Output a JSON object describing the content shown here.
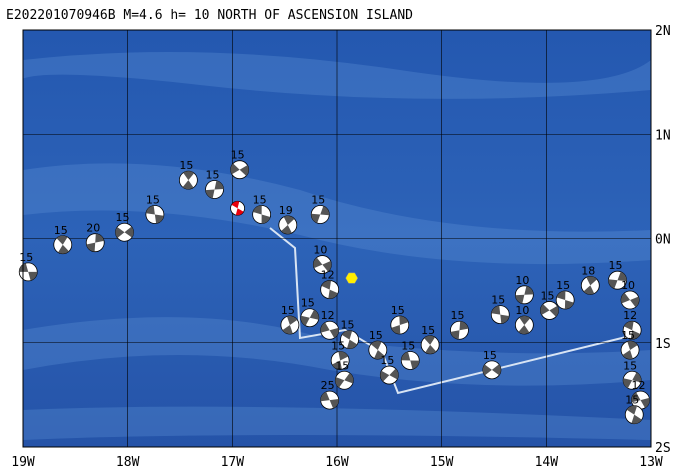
{
  "map": {
    "title": "E202201070946B M=4.6 h= 10 NORTH OF ASCENSION ISLAND",
    "lonlim": [
      -19,
      -13
    ],
    "latlim": [
      -2,
      2
    ],
    "lonticks": [
      {
        "value": -19,
        "label": "19W"
      },
      {
        "value": -18,
        "label": "18W"
      },
      {
        "value": -17,
        "label": "17W"
      },
      {
        "value": -16,
        "label": "16W"
      },
      {
        "value": -15,
        "label": "15W"
      },
      {
        "value": -14,
        "label": "14W"
      },
      {
        "value": -13,
        "label": "13W"
      }
    ],
    "latticks": [
      {
        "value": 2,
        "label": "2N"
      },
      {
        "value": 1,
        "label": "1N"
      },
      {
        "value": 0,
        "label": "0N"
      },
      {
        "value": -1,
        "label": "1S"
      },
      {
        "value": -2,
        "label": "2S"
      }
    ],
    "main_event": {
      "lon": -16.95,
      "lat": 0.29,
      "color": "#e8000b"
    },
    "station": {
      "lon": -15.86,
      "lat": -0.38,
      "color": "#ffee00"
    },
    "events": [
      {
        "lon": -18.95,
        "lat": -0.32,
        "depth": 15
      },
      {
        "lon": -18.62,
        "lat": -0.06,
        "depth": 15
      },
      {
        "lon": -18.31,
        "lat": -0.04,
        "depth": 20
      },
      {
        "lon": -18.03,
        "lat": 0.06,
        "depth": 15
      },
      {
        "lon": -17.74,
        "lat": 0.23,
        "depth": 15
      },
      {
        "lon": -17.42,
        "lat": 0.56,
        "depth": 15
      },
      {
        "lon": -17.17,
        "lat": 0.47,
        "depth": 15
      },
      {
        "lon": -16.93,
        "lat": 0.66,
        "depth": 15
      },
      {
        "lon": -16.72,
        "lat": 0.23,
        "depth": 15
      },
      {
        "lon": -16.47,
        "lat": 0.13,
        "depth": 19
      },
      {
        "lon": -16.16,
        "lat": 0.23,
        "depth": 15
      },
      {
        "lon": -16.14,
        "lat": -0.25,
        "depth": 10
      },
      {
        "lon": -16.07,
        "lat": -0.49,
        "depth": 12
      },
      {
        "lon": -16.45,
        "lat": -0.83,
        "depth": 15
      },
      {
        "lon": -16.26,
        "lat": -0.76,
        "depth": 15
      },
      {
        "lon": -16.07,
        "lat": -0.88,
        "depth": 12
      },
      {
        "lon": -15.88,
        "lat": -0.97,
        "depth": 15
      },
      {
        "lon": -15.97,
        "lat": -1.17,
        "depth": 15
      },
      {
        "lon": -15.93,
        "lat": -1.36,
        "depth": 15
      },
      {
        "lon": -16.07,
        "lat": -1.55,
        "depth": 25
      },
      {
        "lon": -15.61,
        "lat": -1.07,
        "depth": 15
      },
      {
        "lon": -15.4,
        "lat": -0.83,
        "depth": 15
      },
      {
        "lon": -15.5,
        "lat": -1.31,
        "depth": 15
      },
      {
        "lon": -15.3,
        "lat": -1.17,
        "depth": 15
      },
      {
        "lon": -15.11,
        "lat": -1.02,
        "depth": 15
      },
      {
        "lon": -14.83,
        "lat": -0.88,
        "depth": 15
      },
      {
        "lon": -14.52,
        "lat": -1.26,
        "depth": 15
      },
      {
        "lon": -14.44,
        "lat": -0.73,
        "depth": 15
      },
      {
        "lon": -14.21,
        "lat": -0.83,
        "depth": 10
      },
      {
        "lon": -14.21,
        "lat": -0.54,
        "depth": 10
      },
      {
        "lon": -13.97,
        "lat": -0.69,
        "depth": 15
      },
      {
        "lon": -13.82,
        "lat": -0.59,
        "depth": 15
      },
      {
        "lon": -13.58,
        "lat": -0.45,
        "depth": 18
      },
      {
        "lon": -13.32,
        "lat": -0.4,
        "depth": 15
      },
      {
        "lon": -13.2,
        "lat": -0.59,
        "depth": 10
      },
      {
        "lon": -13.18,
        "lat": -0.88,
        "depth": 12
      },
      {
        "lon": -13.2,
        "lat": -1.07,
        "depth": 15
      },
      {
        "lon": -13.18,
        "lat": -1.36,
        "depth": 15
      },
      {
        "lon": -13.1,
        "lat": -1.55,
        "depth": 12
      },
      {
        "lon": -13.16,
        "lat": -1.69,
        "depth": 15
      }
    ]
  }
}
